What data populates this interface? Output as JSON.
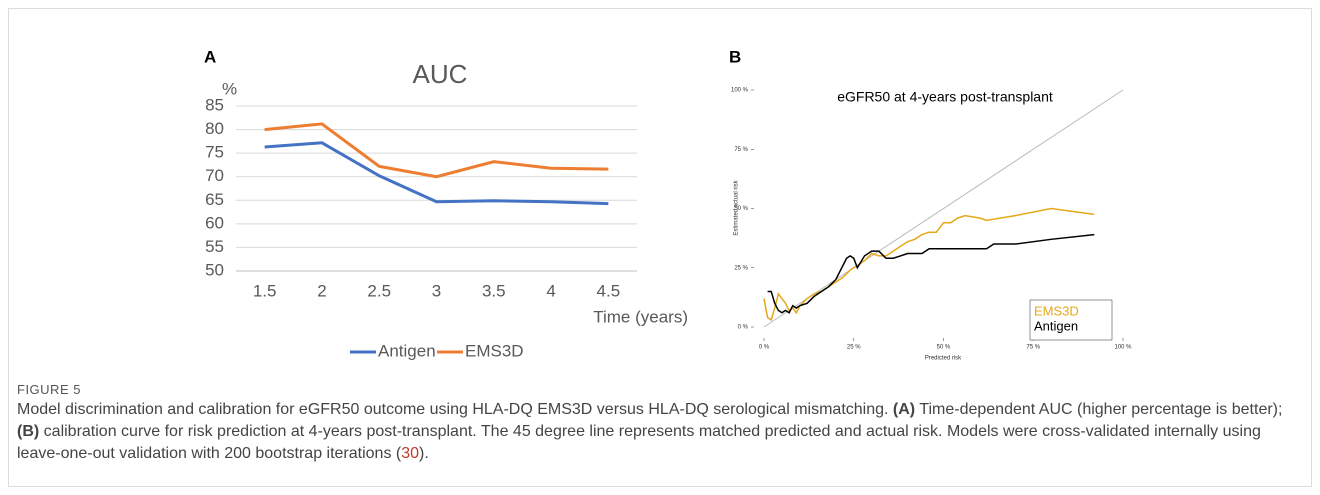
{
  "chart_data": [
    {
      "type": "line",
      "panel": "A",
      "title": "AUC",
      "ylabel": "%",
      "xlabel": "Time (years)",
      "categories": [
        "1.5",
        "2",
        "2.5",
        "3",
        "3.5",
        "4",
        "4.5"
      ],
      "series": [
        {
          "name": "Antigen",
          "color": "#4472c4",
          "values": [
            76.3,
            77.2,
            70.2,
            64.7,
            64.9,
            64.7,
            64.3
          ]
        },
        {
          "name": "EMS3D",
          "color": "#ed7d31",
          "values": [
            80,
            81.2,
            72.2,
            70,
            73.2,
            71.8,
            71.6
          ]
        }
      ],
      "ylim": [
        50,
        85
      ],
      "yticks": [
        50,
        55,
        60,
        65,
        70,
        75,
        80,
        85
      ],
      "grid": true,
      "legend": "bottom"
    },
    {
      "type": "calibration",
      "panel": "B",
      "title": "eGFR50 at 4-years post-transplant",
      "xlabel": "Predicted risk",
      "ylabel": "Estimated actual risk",
      "xlim": [
        0,
        100
      ],
      "ylim": [
        0,
        100
      ],
      "xticks": [
        {
          "value": 0,
          "label": "0 %"
        },
        {
          "value": 25,
          "label": "25 %"
        },
        {
          "value": 50,
          "label": "50 %"
        },
        {
          "value": 75,
          "label": "75 %"
        },
        {
          "value": 100,
          "label": "100 %"
        }
      ],
      "yticks": [
        {
          "value": 0,
          "label": "0 %"
        },
        {
          "value": 25,
          "label": "25 %"
        },
        {
          "value": 50,
          "label": "50 %"
        },
        {
          "value": 75,
          "label": "75 %"
        },
        {
          "value": 100,
          "label": "100 %"
        }
      ],
      "diagonal": true,
      "legend": "lower right",
      "series": [
        {
          "name": "EMS3D",
          "color": "#e6a817",
          "x": [
            0,
            1,
            2,
            3,
            4,
            5,
            6,
            7,
            8,
            9,
            10,
            12,
            14,
            16,
            18,
            20,
            22,
            24,
            26,
            28,
            30,
            32,
            34,
            36,
            38,
            40,
            42,
            44,
            46,
            48,
            50,
            52,
            54,
            56,
            60,
            62,
            70,
            80,
            92
          ],
          "values": [
            12,
            4,
            3,
            8,
            14,
            12,
            10,
            7,
            8,
            6,
            9,
            12,
            14,
            15,
            17,
            19,
            21,
            24,
            26,
            28,
            31,
            30,
            30,
            32,
            34,
            36,
            37,
            39,
            40,
            40,
            44,
            44,
            46,
            47,
            46,
            45,
            47,
            50,
            47.5
          ]
        },
        {
          "name": "Antigen",
          "color": "#000000",
          "x": [
            1,
            2,
            3,
            4,
            5,
            6,
            7,
            8,
            9,
            10,
            12,
            14,
            16,
            18,
            20,
            22,
            23,
            24,
            25,
            26,
            28,
            30,
            32,
            34,
            36,
            38,
            40,
            42,
            44,
            46,
            50,
            55,
            58,
            60,
            62,
            64,
            70,
            80,
            92
          ],
          "values": [
            15,
            15,
            10,
            7,
            6,
            7,
            6,
            9,
            8,
            9,
            10,
            13,
            15,
            17,
            20,
            26,
            29,
            30,
            29,
            25,
            30,
            32,
            32,
            29,
            29,
            30,
            31,
            31,
            31,
            33,
            33,
            33,
            33,
            33,
            33,
            35,
            35,
            37,
            39
          ]
        }
      ]
    }
  ],
  "caption": {
    "label": "FIGURE 5",
    "parts": [
      "Model discrimination and calibration for eGFR50 outcome using HLA-DQ EMS3D versus HLA-DQ serological mismatching. ",
      "(A)",
      " Time-dependent AUC (higher percentage is better); ",
      "(B)",
      " calibration curve for risk prediction at 4-years post-transplant. The 45 degree line represents matched predicted and actual risk. Models were cross-validated internally using leave-one-out validation with 200 bootstrap iterations (",
      "30",
      ")."
    ]
  }
}
